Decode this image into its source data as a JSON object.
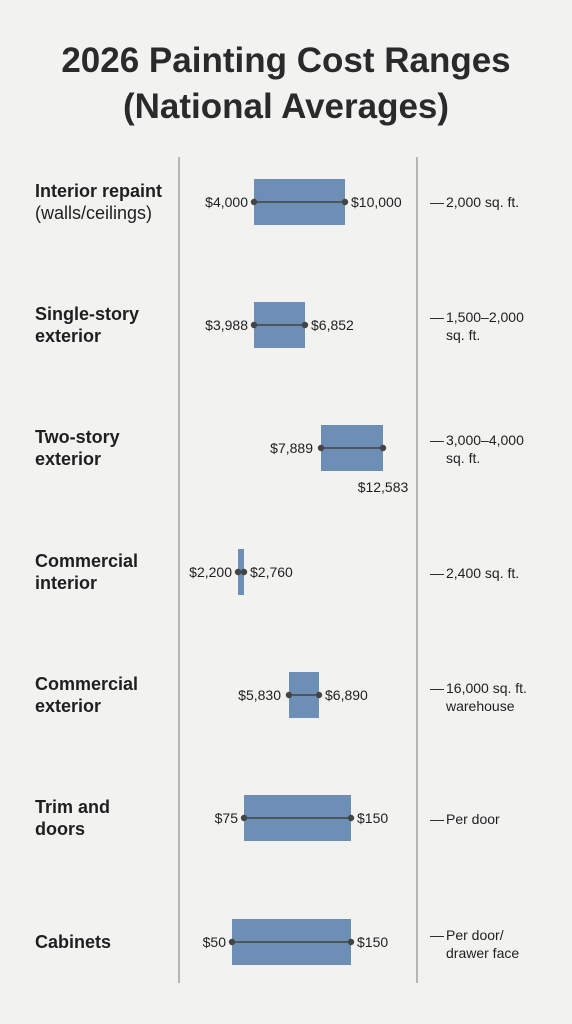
{
  "title_line1": "2026 Painting Cost Ranges",
  "title_line2": "(National Averages)",
  "colors": {
    "bar": "#6d8fb5",
    "divider": "#a3a3a3",
    "marker": "#444444"
  },
  "chart_data": {
    "type": "range-bar",
    "title": "2026 Painting Cost Ranges (National Averages)",
    "unit": "USD",
    "grid": false,
    "rows": [
      {
        "label_line1": "Interior repaint",
        "label_line2": "(walls/ceilings)",
        "low": 4000,
        "high": 10000,
        "low_label": "$4,000",
        "high_label": "$10,000",
        "note_line1": "2,000 sq. ft.",
        "note_line2": ""
      },
      {
        "label_line1": "Single-story",
        "label_line2": "exterior",
        "low": 3988,
        "high": 6852,
        "low_label": "$3,988",
        "high_label": "$6,852",
        "note_line1": "1,500–2,000",
        "note_line2": "sq. ft."
      },
      {
        "label_line1": "Two-story",
        "label_line2": "exterior",
        "low": 7889,
        "high": 12583,
        "low_label": "$7,889",
        "high_label": "$12,583",
        "note_line1": "3,000–4,000",
        "note_line2": "sq. ft."
      },
      {
        "label_line1": "Commercial",
        "label_line2": "interior",
        "low": 2200,
        "high": 2760,
        "low_label": "$2,200",
        "high_label": "$2,760",
        "note_line1": "2,400 sq. ft.",
        "note_line2": ""
      },
      {
        "label_line1": "Commercial",
        "label_line2": "exterior",
        "low": 5830,
        "high": 6890,
        "low_label": "$5,830",
        "high_label": "$6,890",
        "note_line1": "16,000 sq. ft.",
        "note_line2": "warehouse"
      },
      {
        "label_line1": "Trim and",
        "label_line2": "doors",
        "low": 75,
        "high": 150,
        "low_label": "$75",
        "high_label": "$150",
        "note_line1": "Per door",
        "note_line2": ""
      },
      {
        "label_line1": "Cabinets",
        "label_line2": "",
        "low": 50,
        "high": 150,
        "low_label": "$50",
        "high_label": "$150",
        "note_line1": "Per door/",
        "note_line2": "drawer face"
      }
    ]
  }
}
